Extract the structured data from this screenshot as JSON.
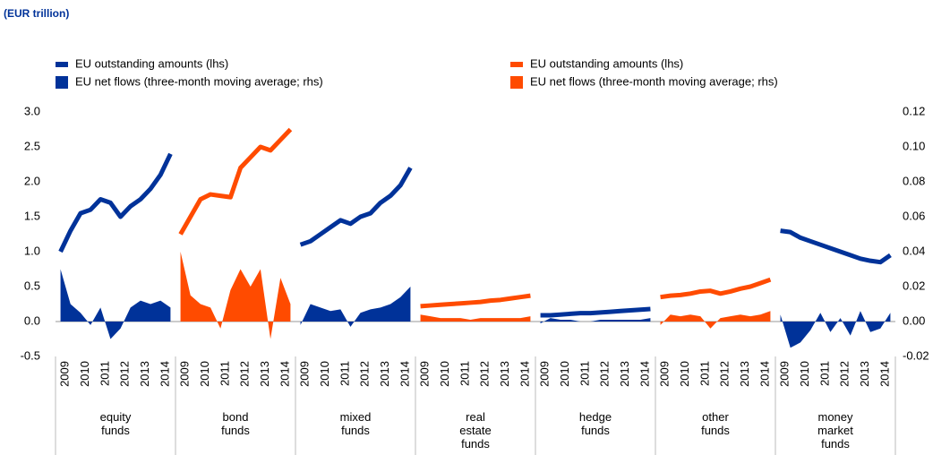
{
  "chart_data": {
    "type": "grouped_line_area",
    "subtitle": "(EUR trillion)",
    "series": [
      {
        "name": "EU outstanding amounts (lhs)",
        "color": "#003299",
        "mark": "line"
      },
      {
        "name": "EU outstanding amounts (lhs)",
        "color": "#ff4b00",
        "mark": "line"
      },
      {
        "name": "EU net flows (three-month moving average; rhs)",
        "color": "#003299",
        "mark": "area",
        "axis": "y2"
      },
      {
        "name": "EU net flows (three-month moving average; rhs)",
        "color": "#ff4b00",
        "mark": "area",
        "axis": "y2"
      }
    ],
    "years": [
      "2009",
      "2010",
      "2011",
      "2012",
      "2013",
      "2014"
    ],
    "groups": [
      {
        "name": "equity funds",
        "color": "#003299",
        "outstanding": [
          1.0,
          1.3,
          1.55,
          1.6,
          1.75,
          1.7,
          1.5,
          1.65,
          1.75,
          1.9,
          2.1,
          2.4
        ],
        "net_flows": [
          0.03,
          0.01,
          0.005,
          -0.002,
          0.008,
          -0.01,
          -0.004,
          0.008,
          0.012,
          0.01,
          0.012,
          0.008
        ]
      },
      {
        "name": "bond funds",
        "color": "#ff4b00",
        "outstanding": [
          1.25,
          1.5,
          1.75,
          1.82,
          1.8,
          1.78,
          2.2,
          2.35,
          2.5,
          2.45,
          2.6,
          2.75
        ],
        "net_flows": [
          0.04,
          0.015,
          0.01,
          0.008,
          -0.004,
          0.018,
          0.03,
          0.02,
          0.03,
          -0.01,
          0.025,
          0.01
        ]
      },
      {
        "name": "mixed funds",
        "color": "#003299",
        "outstanding": [
          1.1,
          1.15,
          1.25,
          1.35,
          1.45,
          1.4,
          1.5,
          1.55,
          1.7,
          1.8,
          1.95,
          2.2
        ],
        "net_flows": [
          -0.002,
          0.01,
          0.008,
          0.006,
          0.007,
          -0.003,
          0.005,
          0.007,
          0.008,
          0.01,
          0.014,
          0.02
        ]
      },
      {
        "name": "real estate funds",
        "color": "#ff4b00",
        "outstanding": [
          0.22,
          0.23,
          0.24,
          0.25,
          0.26,
          0.27,
          0.28,
          0.3,
          0.31,
          0.33,
          0.35,
          0.37
        ],
        "net_flows": [
          0.004,
          0.003,
          0.002,
          0.002,
          0.002,
          0.001,
          0.002,
          0.002,
          0.002,
          0.002,
          0.002,
          0.003
        ]
      },
      {
        "name": "hedge funds",
        "color": "#003299",
        "outstanding": [
          0.09,
          0.09,
          0.1,
          0.11,
          0.12,
          0.12,
          0.13,
          0.14,
          0.15,
          0.16,
          0.17,
          0.18
        ],
        "net_flows": [
          -0.001,
          0.002,
          0.001,
          0.001,
          0.0,
          0.0,
          0.001,
          0.001,
          0.001,
          0.001,
          0.001,
          0.002
        ]
      },
      {
        "name": "other funds",
        "color": "#ff4b00",
        "outstanding": [
          0.35,
          0.37,
          0.38,
          0.4,
          0.43,
          0.44,
          0.4,
          0.43,
          0.47,
          0.5,
          0.55,
          0.6
        ],
        "net_flows": [
          -0.002,
          0.004,
          0.003,
          0.004,
          0.003,
          -0.004,
          0.002,
          0.003,
          0.004,
          0.003,
          0.004,
          0.006
        ]
      },
      {
        "name": "money market funds",
        "color": "#003299",
        "outstanding": [
          1.3,
          1.28,
          1.2,
          1.15,
          1.1,
          1.05,
          1.0,
          0.95,
          0.9,
          0.87,
          0.85,
          0.95
        ],
        "net_flows": [
          0.004,
          -0.015,
          -0.012,
          -0.005,
          0.005,
          -0.006,
          0.002,
          -0.008,
          0.006,
          -0.006,
          -0.004,
          0.005
        ]
      }
    ],
    "ylim": [
      -0.5,
      3.0
    ],
    "yticks": [
      {
        "value": -0.5,
        "label": "-0.5"
      },
      {
        "value": 0,
        "label": "0.0"
      },
      0.5,
      {
        "value": 1,
        "label": "1.0"
      },
      1.5,
      {
        "value": 2,
        "label": "2.0"
      },
      2.5,
      {
        "value": 3,
        "label": "3.0"
      }
    ],
    "y2lim": [
      -0.02,
      0.12
    ],
    "y2ticks": [
      -0.02,
      {
        "value": 0,
        "label": "0.00"
      },
      0.02,
      0.04,
      0.06,
      0.08,
      {
        "value": 0.1,
        "label": "0.10"
      },
      0.12
    ]
  }
}
